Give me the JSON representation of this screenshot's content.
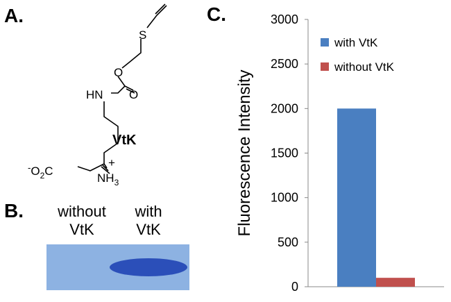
{
  "panel_labels": [
    "A.",
    "B.",
    "C."
  ],
  "structure": {
    "atoms": [
      "S",
      "O",
      "O",
      "HN",
      "+"
    ],
    "carboxylate": [
      "-",
      "O",
      "2",
      "C"
    ],
    "ammonium": [
      "NH",
      "3"
    ],
    "name": "VtK"
  },
  "gel": {
    "lanes": [
      [
        "without",
        "VtK"
      ],
      [
        "with",
        "VtK"
      ]
    ]
  },
  "chart_data": {
    "type": "bar",
    "ylabel": "Fluorescence Intensity",
    "categories": [
      null
    ],
    "series": [
      {
        "name": "with VtK",
        "color": "#4a7fc1",
        "values": [
          2000
        ]
      },
      {
        "name": "without VtK",
        "color": "#c0504d",
        "values": [
          100
        ]
      }
    ],
    "ylim": [
      0,
      3000
    ],
    "yticks": [
      0,
      500,
      1000,
      1500,
      2000,
      2500,
      3000
    ],
    "grid": false,
    "legend": "top-right"
  }
}
